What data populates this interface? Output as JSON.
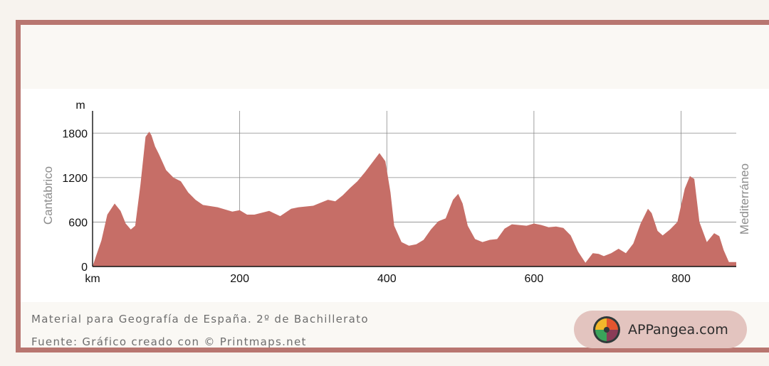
{
  "chart_data": {
    "type": "area",
    "xlabel": "km",
    "ylabel": "m",
    "xlim": [
      0,
      875
    ],
    "ylim": [
      0,
      2100
    ],
    "x_ticks": [
      200,
      400,
      600,
      800
    ],
    "y_ticks": [
      0,
      600,
      1200,
      1800
    ],
    "grid": true,
    "left_label": "Cantábrico",
    "right_label": "Mediterráneo",
    "series": [
      {
        "color": "#c66e67",
        "x": [
          0,
          5,
          12,
          20,
          30,
          38,
          45,
          52,
          58,
          65,
          72,
          77,
          80,
          85,
          90,
          100,
          110,
          120,
          130,
          140,
          150,
          170,
          190,
          200,
          210,
          220,
          240,
          255,
          270,
          280,
          300,
          310,
          320,
          330,
          340,
          350,
          360,
          370,
          380,
          390,
          398,
          405,
          410,
          420,
          430,
          440,
          450,
          460,
          470,
          480,
          490,
          497,
          503,
          510,
          520,
          530,
          540,
          550,
          560,
          570,
          580,
          590,
          600,
          610,
          620,
          630,
          640,
          650,
          660,
          670,
          680,
          688,
          695,
          705,
          715,
          725,
          735,
          745,
          755,
          760,
          768,
          775,
          785,
          795,
          805,
          812,
          818,
          825,
          835,
          845,
          852,
          858,
          865,
          875
        ],
        "y": [
          0,
          150,
          350,
          700,
          850,
          750,
          580,
          500,
          550,
          1100,
          1750,
          1820,
          1770,
          1620,
          1520,
          1300,
          1200,
          1150,
          1000,
          900,
          830,
          800,
          740,
          760,
          700,
          700,
          750,
          680,
          780,
          800,
          820,
          860,
          900,
          880,
          960,
          1060,
          1150,
          1270,
          1400,
          1530,
          1420,
          1000,
          550,
          330,
          280,
          300,
          360,
          500,
          610,
          650,
          900,
          980,
          850,
          550,
          370,
          330,
          360,
          370,
          510,
          570,
          560,
          550,
          580,
          560,
          530,
          540,
          520,
          420,
          200,
          50,
          180,
          170,
          140,
          180,
          240,
          180,
          310,
          580,
          780,
          720,
          480,
          420,
          500,
          600,
          1050,
          1220,
          1180,
          600,
          330,
          450,
          410,
          220,
          60,
          60
        ]
      }
    ]
  },
  "captions": {
    "line1": "Material para Geografía de España. 2º de Bachillerato",
    "line2": "Fuente: Gráfico creado con © Printmaps.net"
  },
  "badge": {
    "label": "APPangea.com"
  }
}
